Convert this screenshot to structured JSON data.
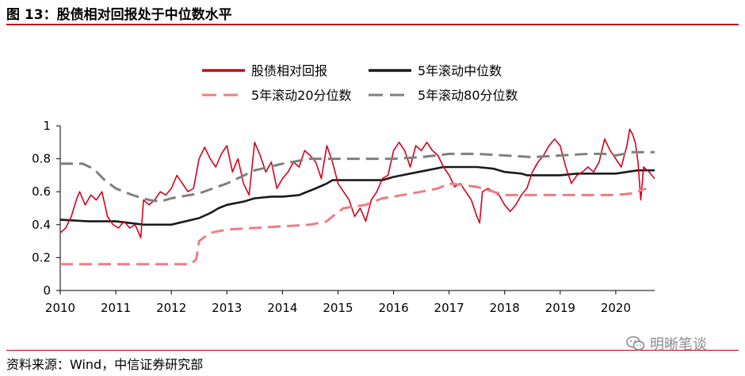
{
  "figure_title": "图 13：股债相对回报处于中位数水平",
  "source": "资料来源：Wind，中信证券研究部",
  "watermark": "明晰笔谈",
  "watermark_icon": "wechat-icon",
  "colors": {
    "accent": "#c0001c",
    "ratio": "#d5001c",
    "median": "#1a1a1a",
    "p20": "#f07c83",
    "p80": "#7f7f7f"
  },
  "chart_data": {
    "type": "line",
    "title": "",
    "xlabel": "",
    "ylabel": "",
    "xlim": [
      2010,
      2020.7
    ],
    "ylim": [
      0,
      1
    ],
    "x_ticks": [
      2010,
      2011,
      2012,
      2013,
      2014,
      2015,
      2016,
      2017,
      2018,
      2019,
      2020
    ],
    "y_ticks": [
      0,
      0.2,
      0.4,
      0.6,
      0.8,
      1
    ],
    "y_tick_labels": [
      "0",
      "0.2",
      "0.4",
      "0.6",
      "0.8",
      "1"
    ],
    "grid": false,
    "legend_position": "top-center",
    "series": [
      {
        "name": "股债相对回报",
        "style": "solid",
        "color": "#d5001c",
        "points": [
          [
            2010.0,
            0.35
          ],
          [
            2010.1,
            0.38
          ],
          [
            2010.2,
            0.45
          ],
          [
            2010.3,
            0.56
          ],
          [
            2010.35,
            0.6
          ],
          [
            2010.45,
            0.52
          ],
          [
            2010.55,
            0.58
          ],
          [
            2010.65,
            0.55
          ],
          [
            2010.75,
            0.6
          ],
          [
            2010.85,
            0.45
          ],
          [
            2010.95,
            0.4
          ],
          [
            2011.05,
            0.38
          ],
          [
            2011.15,
            0.42
          ],
          [
            2011.25,
            0.38
          ],
          [
            2011.35,
            0.4
          ],
          [
            2011.45,
            0.32
          ],
          [
            2011.5,
            0.55
          ],
          [
            2011.6,
            0.52
          ],
          [
            2011.7,
            0.55
          ],
          [
            2011.8,
            0.6
          ],
          [
            2011.9,
            0.58
          ],
          [
            2012.0,
            0.62
          ],
          [
            2012.1,
            0.7
          ],
          [
            2012.2,
            0.65
          ],
          [
            2012.3,
            0.6
          ],
          [
            2012.4,
            0.62
          ],
          [
            2012.5,
            0.8
          ],
          [
            2012.6,
            0.87
          ],
          [
            2012.7,
            0.8
          ],
          [
            2012.8,
            0.75
          ],
          [
            2012.9,
            0.83
          ],
          [
            2013.0,
            0.88
          ],
          [
            2013.1,
            0.72
          ],
          [
            2013.2,
            0.8
          ],
          [
            2013.3,
            0.65
          ],
          [
            2013.4,
            0.58
          ],
          [
            2013.5,
            0.9
          ],
          [
            2013.6,
            0.82
          ],
          [
            2013.7,
            0.72
          ],
          [
            2013.8,
            0.78
          ],
          [
            2013.9,
            0.62
          ],
          [
            2014.0,
            0.68
          ],
          [
            2014.1,
            0.72
          ],
          [
            2014.2,
            0.78
          ],
          [
            2014.3,
            0.75
          ],
          [
            2014.4,
            0.85
          ],
          [
            2014.5,
            0.82
          ],
          [
            2014.6,
            0.78
          ],
          [
            2014.7,
            0.68
          ],
          [
            2014.8,
            0.88
          ],
          [
            2014.9,
            0.78
          ],
          [
            2015.0,
            0.65
          ],
          [
            2015.1,
            0.6
          ],
          [
            2015.2,
            0.55
          ],
          [
            2015.3,
            0.45
          ],
          [
            2015.4,
            0.5
          ],
          [
            2015.5,
            0.42
          ],
          [
            2015.6,
            0.55
          ],
          [
            2015.7,
            0.6
          ],
          [
            2015.8,
            0.68
          ],
          [
            2015.9,
            0.7
          ],
          [
            2016.0,
            0.85
          ],
          [
            2016.1,
            0.9
          ],
          [
            2016.2,
            0.85
          ],
          [
            2016.3,
            0.75
          ],
          [
            2016.4,
            0.88
          ],
          [
            2016.5,
            0.85
          ],
          [
            2016.6,
            0.9
          ],
          [
            2016.7,
            0.85
          ],
          [
            2016.8,
            0.82
          ],
          [
            2016.9,
            0.75
          ],
          [
            2017.0,
            0.7
          ],
          [
            2017.1,
            0.63
          ],
          [
            2017.2,
            0.65
          ],
          [
            2017.3,
            0.6
          ],
          [
            2017.4,
            0.55
          ],
          [
            2017.5,
            0.45
          ],
          [
            2017.55,
            0.41
          ],
          [
            2017.6,
            0.6
          ],
          [
            2017.7,
            0.62
          ],
          [
            2017.8,
            0.6
          ],
          [
            2017.9,
            0.58
          ],
          [
            2018.0,
            0.52
          ],
          [
            2018.1,
            0.48
          ],
          [
            2018.2,
            0.52
          ],
          [
            2018.3,
            0.58
          ],
          [
            2018.4,
            0.62
          ],
          [
            2018.5,
            0.72
          ],
          [
            2018.6,
            0.78
          ],
          [
            2018.7,
            0.82
          ],
          [
            2018.8,
            0.88
          ],
          [
            2018.9,
            0.92
          ],
          [
            2019.0,
            0.88
          ],
          [
            2019.1,
            0.75
          ],
          [
            2019.2,
            0.65
          ],
          [
            2019.3,
            0.7
          ],
          [
            2019.4,
            0.72
          ],
          [
            2019.5,
            0.75
          ],
          [
            2019.6,
            0.72
          ],
          [
            2019.7,
            0.78
          ],
          [
            2019.8,
            0.92
          ],
          [
            2019.9,
            0.85
          ],
          [
            2020.0,
            0.8
          ],
          [
            2020.1,
            0.75
          ],
          [
            2020.2,
            0.88
          ],
          [
            2020.25,
            0.98
          ],
          [
            2020.3,
            0.95
          ],
          [
            2020.35,
            0.9
          ],
          [
            2020.4,
            0.78
          ],
          [
            2020.45,
            0.55
          ],
          [
            2020.5,
            0.75
          ],
          [
            2020.6,
            0.72
          ],
          [
            2020.7,
            0.68
          ]
        ]
      },
      {
        "name": "5年滚动中位数",
        "style": "solid",
        "color": "#1a1a1a",
        "points": [
          [
            2010.0,
            0.43
          ],
          [
            2010.5,
            0.42
          ],
          [
            2011.0,
            0.42
          ],
          [
            2011.5,
            0.4
          ],
          [
            2012.0,
            0.4
          ],
          [
            2012.5,
            0.44
          ],
          [
            2012.7,
            0.47
          ],
          [
            2012.85,
            0.5
          ],
          [
            2013.0,
            0.52
          ],
          [
            2013.3,
            0.54
          ],
          [
            2013.5,
            0.56
          ],
          [
            2013.8,
            0.57
          ],
          [
            2014.0,
            0.57
          ],
          [
            2014.3,
            0.58
          ],
          [
            2014.6,
            0.62
          ],
          [
            2014.8,
            0.65
          ],
          [
            2014.9,
            0.67
          ],
          [
            2015.0,
            0.67
          ],
          [
            2015.5,
            0.67
          ],
          [
            2015.8,
            0.67
          ],
          [
            2016.0,
            0.69
          ],
          [
            2016.3,
            0.71
          ],
          [
            2016.6,
            0.73
          ],
          [
            2016.9,
            0.75
          ],
          [
            2017.5,
            0.75
          ],
          [
            2017.8,
            0.74
          ],
          [
            2018.0,
            0.72
          ],
          [
            2018.3,
            0.71
          ],
          [
            2018.4,
            0.7
          ],
          [
            2018.6,
            0.7
          ],
          [
            2018.8,
            0.7
          ],
          [
            2019.0,
            0.7
          ],
          [
            2019.3,
            0.71
          ],
          [
            2019.6,
            0.71
          ],
          [
            2020.0,
            0.71
          ],
          [
            2020.2,
            0.72
          ],
          [
            2020.4,
            0.73
          ],
          [
            2020.7,
            0.73
          ]
        ]
      },
      {
        "name": "5年滚动20分位数",
        "style": "dashed",
        "color": "#f07c83",
        "points": [
          [
            2010.0,
            0.16
          ],
          [
            2011.0,
            0.16
          ],
          [
            2012.0,
            0.16
          ],
          [
            2012.35,
            0.16
          ],
          [
            2012.45,
            0.19
          ],
          [
            2012.5,
            0.3
          ],
          [
            2012.7,
            0.35
          ],
          [
            2013.0,
            0.37
          ],
          [
            2013.5,
            0.38
          ],
          [
            2014.0,
            0.39
          ],
          [
            2014.5,
            0.4
          ],
          [
            2014.8,
            0.42
          ],
          [
            2014.9,
            0.45
          ],
          [
            2015.1,
            0.5
          ],
          [
            2015.5,
            0.52
          ],
          [
            2015.8,
            0.56
          ],
          [
            2016.0,
            0.57
          ],
          [
            2016.5,
            0.6
          ],
          [
            2016.8,
            0.62
          ],
          [
            2017.0,
            0.65
          ],
          [
            2017.5,
            0.63
          ],
          [
            2018.0,
            0.58
          ],
          [
            2018.5,
            0.58
          ],
          [
            2019.0,
            0.58
          ],
          [
            2019.5,
            0.58
          ],
          [
            2020.0,
            0.58
          ],
          [
            2020.3,
            0.59
          ],
          [
            2020.55,
            0.62
          ]
        ]
      },
      {
        "name": "5年滚动80分位数",
        "style": "dashed",
        "color": "#7f7f7f",
        "points": [
          [
            2010.0,
            0.77
          ],
          [
            2010.4,
            0.77
          ],
          [
            2010.6,
            0.74
          ],
          [
            2010.8,
            0.67
          ],
          [
            2011.0,
            0.62
          ],
          [
            2011.3,
            0.58
          ],
          [
            2011.6,
            0.55
          ],
          [
            2011.8,
            0.54
          ],
          [
            2012.0,
            0.56
          ],
          [
            2012.5,
            0.59
          ],
          [
            2013.0,
            0.65
          ],
          [
            2013.5,
            0.73
          ],
          [
            2014.0,
            0.77
          ],
          [
            2014.5,
            0.8
          ],
          [
            2014.9,
            0.8
          ],
          [
            2015.5,
            0.8
          ],
          [
            2016.0,
            0.8
          ],
          [
            2016.5,
            0.81
          ],
          [
            2017.0,
            0.83
          ],
          [
            2017.5,
            0.83
          ],
          [
            2018.0,
            0.82
          ],
          [
            2018.5,
            0.81
          ],
          [
            2019.0,
            0.82
          ],
          [
            2019.5,
            0.83
          ],
          [
            2019.8,
            0.83
          ],
          [
            2020.0,
            0.82
          ],
          [
            2020.3,
            0.84
          ],
          [
            2020.7,
            0.84
          ]
        ]
      }
    ]
  }
}
